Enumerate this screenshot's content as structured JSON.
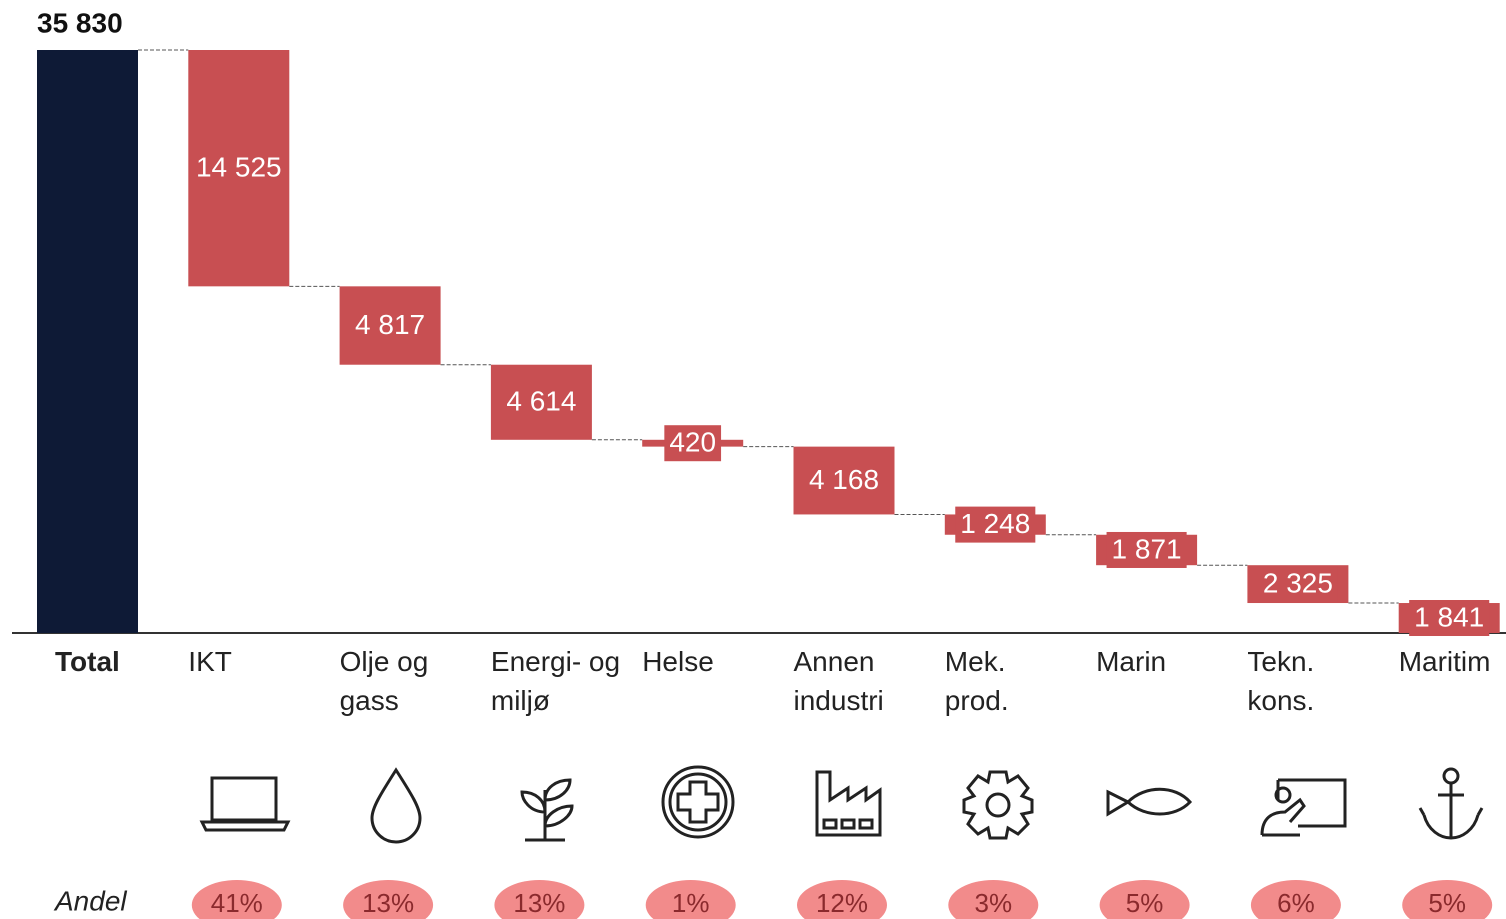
{
  "chart_data": {
    "type": "waterfall",
    "total": {
      "name": "Total",
      "value": 35830,
      "value_label": "35 830",
      "color": "#0e1a36"
    },
    "categories": [
      "IKT",
      "Olje og gass",
      "Energi- og miljø",
      "Helse",
      "Annen industri",
      "Mek. prod.",
      "Marin",
      "Tekn. kons.",
      "Maritim"
    ],
    "values": [
      14525,
      4817,
      4614,
      420,
      4168,
      1248,
      1871,
      2325,
      1841
    ],
    "value_labels": [
      "14 525",
      "4 817",
      "4 614",
      "420",
      "4 168",
      "1 248",
      "1 871",
      "2 325",
      "1 841"
    ],
    "color": "#c84f52",
    "share_title": "Andel",
    "shares": [
      41,
      13,
      13,
      1,
      12,
      3,
      5,
      6,
      5
    ],
    "share_labels": [
      "41%",
      "13%",
      "13%",
      "1%",
      "12%",
      "3%",
      "5%",
      "6%",
      "5%"
    ],
    "share_color": "#f28b8b"
  }
}
